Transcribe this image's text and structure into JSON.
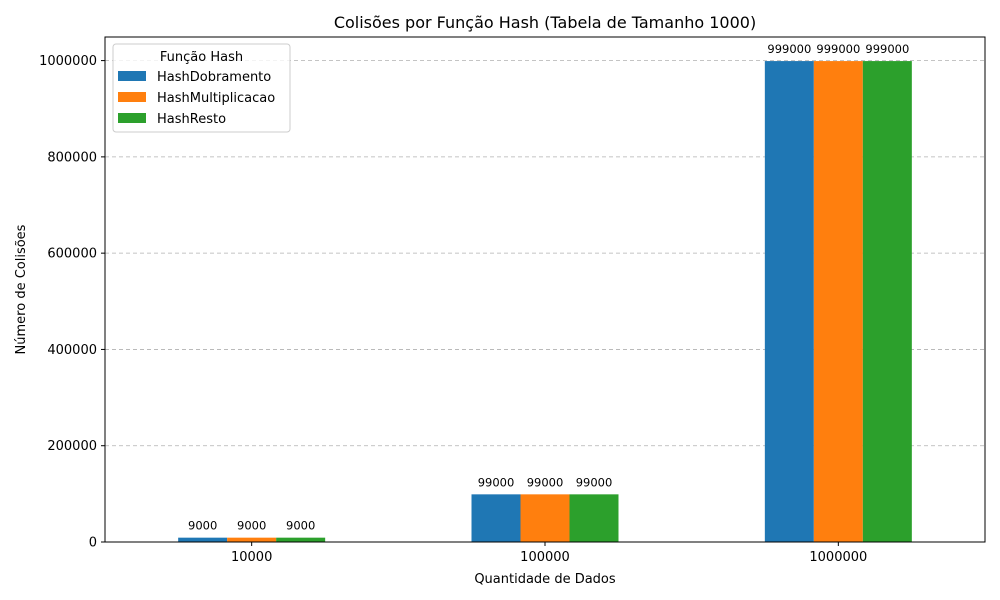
{
  "chart_data": {
    "type": "bar",
    "title": "Colisões por Função Hash (Tabela de Tamanho 1000)",
    "xlabel": "Quantidade de Dados",
    "ylabel": "Número de Colisões",
    "categories": [
      "10000",
      "100000",
      "1000000"
    ],
    "series": [
      {
        "name": "HashDobramento",
        "values": [
          9000,
          99000,
          999000
        ],
        "color": "#1f77b4"
      },
      {
        "name": "HashMultiplicacao",
        "values": [
          9000,
          99000,
          999000
        ],
        "color": "#ff7f0e"
      },
      {
        "name": "HashResto",
        "values": [
          9000,
          99000,
          999000
        ],
        "color": "#2ca02c"
      }
    ],
    "ylim": [
      0,
      1049000
    ],
    "yticks": [
      0,
      200000,
      400000,
      600000,
      800000,
      1000000
    ],
    "grid": "y-dashed",
    "legend": {
      "title": "Função Hash",
      "position": "top-left"
    }
  }
}
